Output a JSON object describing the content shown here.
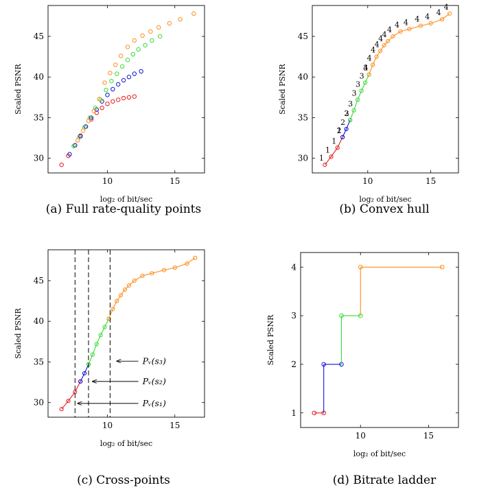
{
  "colors": {
    "red": "#e41a1c",
    "blue": "#1010d8",
    "green": "#33dd33",
    "orange": "#ff8c1a"
  },
  "chart_data": [
    {
      "id": "a",
      "type": "scatter",
      "caption": "(a) Full rate-quality points",
      "xlabel": "log₂ of bit/sec",
      "ylabel": "Scaled PSNR",
      "xlim": [
        5.6,
        17.2
      ],
      "ylim": [
        28.2,
        48.8
      ],
      "xticks": [
        10,
        15
      ],
      "yticks": [
        30,
        35,
        40,
        45
      ],
      "series": [
        {
          "color": "red",
          "x": [
            6.6,
            7.1,
            7.6,
            8.0,
            8.4,
            8.8,
            9.2,
            9.6,
            10.0,
            10.4,
            10.8,
            11.2,
            11.6,
            12.0
          ],
          "y": [
            29.2,
            30.3,
            31.6,
            32.8,
            33.9,
            34.8,
            35.6,
            36.2,
            36.7,
            37.0,
            37.2,
            37.4,
            37.5,
            37.6
          ]
        },
        {
          "color": "blue",
          "x": [
            7.2,
            7.6,
            8.0,
            8.4,
            8.8,
            9.2,
            9.6,
            10.0,
            10.4,
            10.8,
            11.2,
            11.6,
            12.0,
            12.5
          ],
          "y": [
            30.5,
            31.6,
            32.7,
            33.9,
            35.0,
            36.0,
            37.0,
            37.8,
            38.5,
            39.1,
            39.6,
            40.0,
            40.4,
            40.7
          ]
        },
        {
          "color": "green",
          "x": [
            7.5,
            7.9,
            8.3,
            8.7,
            9.1,
            9.5,
            9.9,
            10.3,
            10.7,
            11.1,
            11.5,
            11.9,
            12.3,
            12.8,
            13.3,
            13.9
          ],
          "y": [
            31.5,
            32.6,
            33.8,
            35.0,
            36.2,
            37.2,
            38.4,
            39.5,
            40.4,
            41.3,
            42.1,
            42.8,
            43.4,
            43.9,
            44.5,
            45.0
          ]
        },
        {
          "color": "orange",
          "x": [
            7.8,
            8.2,
            8.6,
            9.0,
            9.4,
            9.8,
            10.2,
            10.6,
            11.0,
            11.5,
            12.0,
            12.6,
            13.2,
            13.8,
            14.6,
            15.4,
            16.4
          ],
          "y": [
            32.2,
            33.4,
            34.6,
            35.8,
            37.3,
            39.3,
            40.5,
            41.5,
            42.6,
            43.7,
            44.5,
            45.1,
            45.6,
            46.1,
            46.6,
            47.1,
            47.8
          ]
        }
      ]
    },
    {
      "id": "b",
      "type": "line",
      "caption": "(b) Convex hull",
      "xlabel": "log₂ of bit/sec",
      "ylabel": "Scaled PSNR",
      "xlim": [
        5.6,
        17.2
      ],
      "ylim": [
        28.2,
        48.8
      ],
      "xticks": [
        10,
        15
      ],
      "yticks": [
        30,
        35,
        40,
        45
      ],
      "series": [
        {
          "color": "red",
          "label": "1",
          "x": [
            6.6,
            7.1,
            7.6,
            8.0
          ],
          "y": [
            29.2,
            30.2,
            31.3,
            32.6
          ]
        },
        {
          "color": "blue",
          "label": "2",
          "x": [
            8.0,
            8.3,
            8.6
          ],
          "y": [
            32.6,
            33.6,
            34.7
          ]
        },
        {
          "color": "green",
          "label": "3",
          "x": [
            8.6,
            8.9,
            9.2,
            9.5,
            9.8,
            10.1
          ],
          "y": [
            34.7,
            35.9,
            37.2,
            38.3,
            39.3,
            40.3
          ]
        },
        {
          "color": "orange",
          "label": "4",
          "x": [
            10.1,
            10.4,
            10.7,
            11.0,
            11.3,
            11.6,
            12.0,
            12.6,
            13.3,
            14.2,
            15.0,
            15.9,
            16.5
          ],
          "y": [
            40.3,
            41.5,
            42.5,
            43.2,
            43.9,
            44.4,
            45.0,
            45.6,
            45.9,
            46.3,
            46.6,
            47.1,
            47.8
          ]
        }
      ]
    },
    {
      "id": "c",
      "type": "line",
      "caption": "(c) Cross-points",
      "xlabel": "log₂ of bit/sec",
      "ylabel": "Scaled PSNR",
      "xlim": [
        5.6,
        17.2
      ],
      "ylim": [
        28.2,
        48.8
      ],
      "xticks": [
        10,
        15
      ],
      "yticks": [
        30,
        35,
        40,
        45
      ],
      "vlines": [
        7.6,
        8.6,
        10.2
      ],
      "annotations": [
        {
          "text": "Pᵥ(s₃)",
          "x": 12.6,
          "y": 35.1,
          "to_x": 10.7
        },
        {
          "text": "Pᵥ(s₂)",
          "x": 12.6,
          "y": 32.6,
          "to_x": 8.9
        },
        {
          "text": "Pᵥ(s₁)",
          "x": 12.6,
          "y": 29.9,
          "to_x": 7.8
        }
      ]
    },
    {
      "id": "d",
      "type": "line",
      "caption": "(d) Bitrate ladder",
      "xlabel": "log₂ of bit/sec",
      "ylabel": "Scaled PSNR",
      "xlim": [
        5.6,
        17.2
      ],
      "ylim": [
        0.7,
        4.3
      ],
      "xticks": [
        10,
        15
      ],
      "yticks": [
        1,
        2,
        3,
        4
      ],
      "series": [
        {
          "color": "red",
          "x": [
            6.6,
            7.3
          ],
          "y": [
            1,
            1
          ]
        },
        {
          "color": "blue",
          "x": [
            7.3,
            8.6
          ],
          "y": [
            2,
            2
          ]
        },
        {
          "color": "green",
          "x": [
            8.6,
            10.0
          ],
          "y": [
            3,
            3
          ]
        },
        {
          "color": "orange",
          "x": [
            10.0,
            16.0
          ],
          "y": [
            4,
            4
          ]
        }
      ]
    }
  ]
}
